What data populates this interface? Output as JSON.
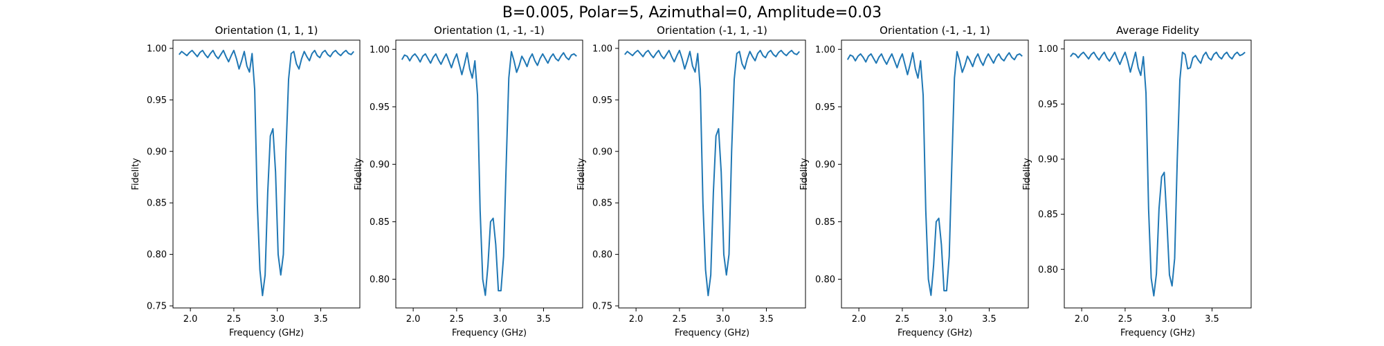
{
  "figure": {
    "suptitle": "B=0.005, Polar=5, Azimuthal=0, Amplitude=0.03"
  },
  "style": {
    "line_color": "#1f77b4",
    "axis_color": "#000000",
    "background": "#ffffff"
  },
  "chart_data": [
    {
      "type": "line",
      "title": "Orientation (1, 1, 1)",
      "xlabel": "Frequency (GHz)",
      "ylabel": "Fidelity",
      "xlim": [
        1.8,
        3.95
      ],
      "ylim": [
        0.748,
        1.008
      ],
      "xticks": [
        2.0,
        2.5,
        3.0,
        3.5
      ],
      "xtick_labels": [
        "2.0",
        "2.5",
        "3.0",
        "3.5"
      ],
      "yticks": [
        0.75,
        0.8,
        0.85,
        0.9,
        0.95,
        1.0
      ],
      "ytick_labels": [
        "0.75",
        "0.80",
        "0.85",
        "0.90",
        "0.95",
        "1.00"
      ],
      "grid": false,
      "series": [
        {
          "x": [
            1.87,
            1.9,
            1.93,
            1.96,
            1.99,
            2.02,
            2.05,
            2.08,
            2.11,
            2.14,
            2.17,
            2.2,
            2.23,
            2.26,
            2.29,
            2.32,
            2.35,
            2.38,
            2.41,
            2.44,
            2.47,
            2.5,
            2.53,
            2.56,
            2.59,
            2.62,
            2.65,
            2.68,
            2.71,
            2.74,
            2.77,
            2.8,
            2.83,
            2.86,
            2.89,
            2.92,
            2.95,
            2.98,
            3.01,
            3.04,
            3.07,
            3.1,
            3.13,
            3.16,
            3.19,
            3.22,
            3.25,
            3.28,
            3.31,
            3.34,
            3.37,
            3.4,
            3.43,
            3.46,
            3.49,
            3.52,
            3.55,
            3.58,
            3.61,
            3.64,
            3.67,
            3.7,
            3.73,
            3.76,
            3.79,
            3.82,
            3.85,
            3.88
          ],
          "y": [
            0.994,
            0.997,
            0.995,
            0.993,
            0.996,
            0.998,
            0.995,
            0.992,
            0.996,
            0.998,
            0.994,
            0.991,
            0.995,
            0.998,
            0.993,
            0.99,
            0.994,
            0.998,
            0.992,
            0.987,
            0.993,
            0.998,
            0.99,
            0.98,
            0.988,
            0.997,
            0.983,
            0.977,
            0.995,
            0.96,
            0.85,
            0.785,
            0.76,
            0.78,
            0.86,
            0.915,
            0.922,
            0.88,
            0.8,
            0.78,
            0.8,
            0.9,
            0.97,
            0.995,
            0.997,
            0.985,
            0.98,
            0.99,
            0.997,
            0.992,
            0.988,
            0.995,
            0.998,
            0.993,
            0.991,
            0.996,
            0.998,
            0.994,
            0.992,
            0.996,
            0.998,
            0.995,
            0.993,
            0.996,
            0.998,
            0.995,
            0.994,
            0.997
          ]
        }
      ]
    },
    {
      "type": "line",
      "title": "Orientation (1, -1, -1)",
      "xlabel": "Frequency (GHz)",
      "ylabel": "Fidelity",
      "xlim": [
        1.8,
        3.95
      ],
      "ylim": [
        0.775,
        1.008
      ],
      "xticks": [
        2.0,
        2.5,
        3.0,
        3.5
      ],
      "xtick_labels": [
        "2.0",
        "2.5",
        "3.0",
        "3.5"
      ],
      "yticks": [
        0.8,
        0.85,
        0.9,
        0.95,
        1.0
      ],
      "ytick_labels": [
        "0.80",
        "0.85",
        "0.90",
        "0.95",
        "1.00"
      ],
      "grid": false,
      "series": [
        {
          "x": [
            1.87,
            1.9,
            1.93,
            1.96,
            1.99,
            2.02,
            2.05,
            2.08,
            2.11,
            2.14,
            2.17,
            2.2,
            2.23,
            2.26,
            2.29,
            2.32,
            2.35,
            2.38,
            2.41,
            2.44,
            2.47,
            2.5,
            2.53,
            2.56,
            2.59,
            2.62,
            2.65,
            2.68,
            2.71,
            2.74,
            2.77,
            2.8,
            2.83,
            2.86,
            2.89,
            2.92,
            2.95,
            2.98,
            3.01,
            3.04,
            3.07,
            3.1,
            3.13,
            3.16,
            3.19,
            3.22,
            3.25,
            3.28,
            3.31,
            3.34,
            3.37,
            3.4,
            3.43,
            3.46,
            3.49,
            3.52,
            3.55,
            3.58,
            3.61,
            3.64,
            3.67,
            3.7,
            3.73,
            3.76,
            3.79,
            3.82,
            3.85,
            3.88
          ],
          "y": [
            0.991,
            0.995,
            0.994,
            0.99,
            0.994,
            0.996,
            0.993,
            0.989,
            0.994,
            0.996,
            0.992,
            0.988,
            0.993,
            0.996,
            0.991,
            0.987,
            0.992,
            0.996,
            0.99,
            0.984,
            0.991,
            0.996,
            0.987,
            0.978,
            0.987,
            0.997,
            0.983,
            0.975,
            0.99,
            0.96,
            0.86,
            0.8,
            0.786,
            0.812,
            0.85,
            0.853,
            0.83,
            0.79,
            0.79,
            0.82,
            0.9,
            0.975,
            0.998,
            0.99,
            0.98,
            0.986,
            0.994,
            0.99,
            0.985,
            0.992,
            0.996,
            0.99,
            0.986,
            0.992,
            0.996,
            0.992,
            0.988,
            0.993,
            0.996,
            0.992,
            0.99,
            0.994,
            0.997,
            0.993,
            0.991,
            0.995,
            0.996,
            0.994
          ]
        }
      ]
    },
    {
      "type": "line",
      "title": "Orientation (-1, 1, -1)",
      "xlabel": "Frequency (GHz)",
      "ylabel": "Fidelity",
      "xlim": [
        1.8,
        3.95
      ],
      "ylim": [
        0.748,
        1.008
      ],
      "xticks": [
        2.0,
        2.5,
        3.0,
        3.5
      ],
      "xtick_labels": [
        "2.0",
        "2.5",
        "3.0",
        "3.5"
      ],
      "yticks": [
        0.75,
        0.8,
        0.85,
        0.9,
        0.95,
        1.0
      ],
      "ytick_labels": [
        "0.75",
        "0.80",
        "0.85",
        "0.90",
        "0.95",
        "1.00"
      ],
      "grid": false,
      "series": [
        {
          "x": [
            1.87,
            1.9,
            1.93,
            1.96,
            1.99,
            2.02,
            2.05,
            2.08,
            2.11,
            2.14,
            2.17,
            2.2,
            2.23,
            2.26,
            2.29,
            2.32,
            2.35,
            2.38,
            2.41,
            2.44,
            2.47,
            2.5,
            2.53,
            2.56,
            2.59,
            2.62,
            2.65,
            2.68,
            2.71,
            2.74,
            2.77,
            2.8,
            2.83,
            2.86,
            2.89,
            2.92,
            2.95,
            2.98,
            3.01,
            3.04,
            3.07,
            3.1,
            3.13,
            3.16,
            3.19,
            3.22,
            3.25,
            3.28,
            3.31,
            3.34,
            3.37,
            3.4,
            3.43,
            3.46,
            3.49,
            3.52,
            3.55,
            3.58,
            3.61,
            3.64,
            3.67,
            3.7,
            3.73,
            3.76,
            3.79,
            3.82,
            3.85,
            3.88
          ],
          "y": [
            0.994,
            0.997,
            0.995,
            0.993,
            0.996,
            0.998,
            0.995,
            0.992,
            0.996,
            0.998,
            0.994,
            0.991,
            0.995,
            0.998,
            0.993,
            0.99,
            0.994,
            0.998,
            0.992,
            0.987,
            0.993,
            0.998,
            0.99,
            0.98,
            0.988,
            0.997,
            0.983,
            0.977,
            0.995,
            0.96,
            0.85,
            0.785,
            0.76,
            0.78,
            0.86,
            0.915,
            0.922,
            0.88,
            0.8,
            0.78,
            0.8,
            0.9,
            0.97,
            0.995,
            0.997,
            0.985,
            0.98,
            0.99,
            0.997,
            0.992,
            0.988,
            0.995,
            0.998,
            0.993,
            0.991,
            0.996,
            0.998,
            0.994,
            0.992,
            0.996,
            0.998,
            0.995,
            0.993,
            0.996,
            0.998,
            0.995,
            0.994,
            0.997
          ]
        }
      ]
    },
    {
      "type": "line",
      "title": "Orientation (-1, -1, 1)",
      "xlabel": "Frequency (GHz)",
      "ylabel": "Fidelity",
      "xlim": [
        1.8,
        3.95
      ],
      "ylim": [
        0.775,
        1.008
      ],
      "xticks": [
        2.0,
        2.5,
        3.0,
        3.5
      ],
      "xtick_labels": [
        "2.0",
        "2.5",
        "3.0",
        "3.5"
      ],
      "yticks": [
        0.8,
        0.85,
        0.9,
        0.95,
        1.0
      ],
      "ytick_labels": [
        "0.80",
        "0.85",
        "0.90",
        "0.95",
        "1.00"
      ],
      "grid": false,
      "series": [
        {
          "x": [
            1.87,
            1.9,
            1.93,
            1.96,
            1.99,
            2.02,
            2.05,
            2.08,
            2.11,
            2.14,
            2.17,
            2.2,
            2.23,
            2.26,
            2.29,
            2.32,
            2.35,
            2.38,
            2.41,
            2.44,
            2.47,
            2.5,
            2.53,
            2.56,
            2.59,
            2.62,
            2.65,
            2.68,
            2.71,
            2.74,
            2.77,
            2.8,
            2.83,
            2.86,
            2.89,
            2.92,
            2.95,
            2.98,
            3.01,
            3.04,
            3.07,
            3.1,
            3.13,
            3.16,
            3.19,
            3.22,
            3.25,
            3.28,
            3.31,
            3.34,
            3.37,
            3.4,
            3.43,
            3.46,
            3.49,
            3.52,
            3.55,
            3.58,
            3.61,
            3.64,
            3.67,
            3.7,
            3.73,
            3.76,
            3.79,
            3.82,
            3.85,
            3.88
          ],
          "y": [
            0.991,
            0.995,
            0.994,
            0.99,
            0.994,
            0.996,
            0.993,
            0.989,
            0.994,
            0.996,
            0.992,
            0.988,
            0.993,
            0.996,
            0.991,
            0.987,
            0.992,
            0.996,
            0.99,
            0.984,
            0.991,
            0.996,
            0.987,
            0.978,
            0.987,
            0.997,
            0.983,
            0.975,
            0.99,
            0.96,
            0.86,
            0.8,
            0.786,
            0.812,
            0.85,
            0.853,
            0.83,
            0.79,
            0.79,
            0.82,
            0.9,
            0.975,
            0.998,
            0.99,
            0.98,
            0.986,
            0.994,
            0.99,
            0.985,
            0.992,
            0.996,
            0.99,
            0.986,
            0.992,
            0.996,
            0.992,
            0.988,
            0.993,
            0.996,
            0.992,
            0.99,
            0.994,
            0.997,
            0.993,
            0.991,
            0.995,
            0.996,
            0.994
          ]
        }
      ]
    },
    {
      "type": "line",
      "title": "Average Fidelity",
      "xlabel": "Frequency (GHz)",
      "ylabel": "Fidelity",
      "xlim": [
        1.8,
        3.95
      ],
      "ylim": [
        0.765,
        1.008
      ],
      "xticks": [
        2.0,
        2.5,
        3.0,
        3.5
      ],
      "xtick_labels": [
        "2.0",
        "2.5",
        "3.0",
        "3.5"
      ],
      "yticks": [
        0.8,
        0.85,
        0.9,
        0.95,
        1.0
      ],
      "ytick_labels": [
        "0.80",
        "0.85",
        "0.90",
        "0.95",
        "1.00"
      ],
      "grid": false,
      "series": [
        {
          "x": [
            1.87,
            1.9,
            1.93,
            1.96,
            1.99,
            2.02,
            2.05,
            2.08,
            2.11,
            2.14,
            2.17,
            2.2,
            2.23,
            2.26,
            2.29,
            2.32,
            2.35,
            2.38,
            2.41,
            2.44,
            2.47,
            2.5,
            2.53,
            2.56,
            2.59,
            2.62,
            2.65,
            2.68,
            2.71,
            2.74,
            2.77,
            2.8,
            2.83,
            2.86,
            2.89,
            2.92,
            2.95,
            2.98,
            3.01,
            3.04,
            3.07,
            3.1,
            3.13,
            3.16,
            3.19,
            3.22,
            3.25,
            3.28,
            3.31,
            3.34,
            3.37,
            3.4,
            3.43,
            3.46,
            3.49,
            3.52,
            3.55,
            3.58,
            3.61,
            3.64,
            3.67,
            3.7,
            3.73,
            3.76,
            3.79,
            3.82,
            3.85,
            3.88
          ],
          "y": [
            0.993,
            0.996,
            0.995,
            0.992,
            0.995,
            0.997,
            0.994,
            0.991,
            0.995,
            0.997,
            0.993,
            0.99,
            0.994,
            0.997,
            0.992,
            0.989,
            0.993,
            0.997,
            0.991,
            0.986,
            0.992,
            0.997,
            0.989,
            0.979,
            0.988,
            0.997,
            0.983,
            0.976,
            0.993,
            0.96,
            0.855,
            0.792,
            0.776,
            0.796,
            0.855,
            0.884,
            0.888,
            0.845,
            0.795,
            0.785,
            0.81,
            0.9,
            0.972,
            0.997,
            0.995,
            0.982,
            0.983,
            0.992,
            0.994,
            0.99,
            0.987,
            0.994,
            0.997,
            0.992,
            0.99,
            0.995,
            0.997,
            0.993,
            0.991,
            0.995,
            0.997,
            0.993,
            0.991,
            0.995,
            0.997,
            0.994,
            0.995,
            0.997
          ]
        }
      ]
    }
  ]
}
